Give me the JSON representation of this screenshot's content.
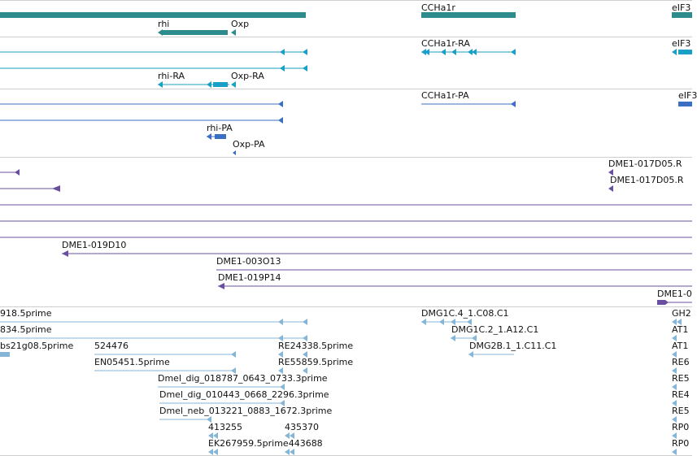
{
  "colors": {
    "gene": "#2e8b8b",
    "transcript_cyan": "#1a9fc6",
    "transcript_blue": "#3a6fc4",
    "clone": "#6a4fa0",
    "est": "#85b6d8",
    "separator": "#cfcfcf"
  },
  "tracks": {
    "genes": {
      "labels": [
        "rhi",
        "Oxp",
        "CCHa1r",
        "eIF3"
      ]
    },
    "transcripts_a": {
      "labels": [
        "CCHa1r-RA",
        "eIF3",
        "rhi-RA",
        "Oxp-RA"
      ]
    },
    "transcripts_b": {
      "labels": [
        "CCHa1r-PA",
        "eIF3",
        "rhi-PA",
        "Oxp-PA"
      ]
    },
    "clones": {
      "labels": [
        "DME1-017D05.R",
        "DME1-017D05.R",
        "DME1-019D10",
        "DME1-003O13",
        "DME1-019P14",
        "DME1-0"
      ]
    },
    "ests": {
      "labels": [
        "918.5prime",
        "DMG1C.4_1.C08.C1",
        "GH2",
        "834.5prime",
        "DMG1C.2_1.A12.C1",
        "AT1",
        "bs21g08.5prime",
        "524476",
        "RE24338.5prime",
        "DMG2B.1_1.C11.C1",
        "AT1",
        "EN05451.5prime",
        "RE55859.5prime",
        "RE6",
        "Dmel_dig_018787_0643_0733.3prime",
        "RE5",
        "Dmel_dig_010443_0668_2296.3prime",
        "RE4",
        "Dmel_neb_013221_0883_1672.3prime",
        "RE5",
        "413255",
        "435370",
        "RP0",
        "EK267959.5prime443688",
        "RP0"
      ]
    }
  }
}
